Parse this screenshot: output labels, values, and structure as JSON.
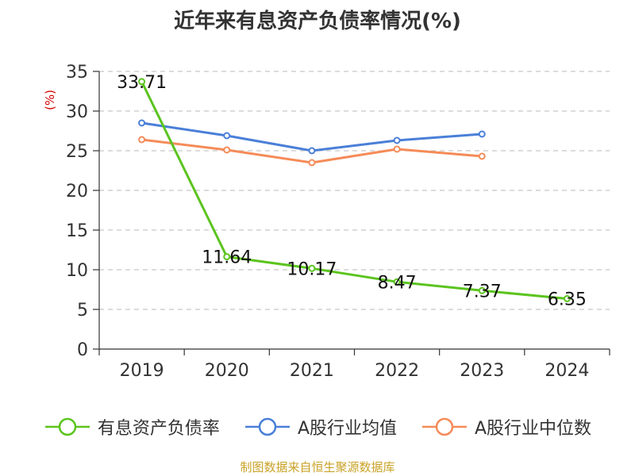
{
  "chart_data": {
    "type": "line",
    "title": "近年来有息资产负债率情况(%)",
    "ylabel": "(%)",
    "categories": [
      "2019",
      "2020",
      "2021",
      "2022",
      "2023",
      "2024"
    ],
    "ylim": [
      0,
      35
    ],
    "yticks": [
      0,
      5,
      10,
      15,
      20,
      25,
      30,
      35
    ],
    "grid": true,
    "legend_position": "bottom",
    "series": [
      {
        "name": "有息资产负债率",
        "color": "#5bc41e",
        "values": [
          33.71,
          11.64,
          10.17,
          8.47,
          7.37,
          6.35
        ],
        "labels": [
          "33.71",
          "11.64",
          "10.17",
          "8.47",
          "7.37",
          "6.35"
        ]
      },
      {
        "name": "A股行业均值",
        "color": "#4a7fd8",
        "values": [
          28.5,
          26.9,
          25.0,
          26.3,
          27.1,
          null
        ]
      },
      {
        "name": "A股行业中位数",
        "color": "#f58b58",
        "values": [
          26.4,
          25.1,
          23.5,
          25.2,
          24.3,
          null
        ]
      }
    ]
  },
  "source_note": "制图数据来自恒生聚源数据库"
}
